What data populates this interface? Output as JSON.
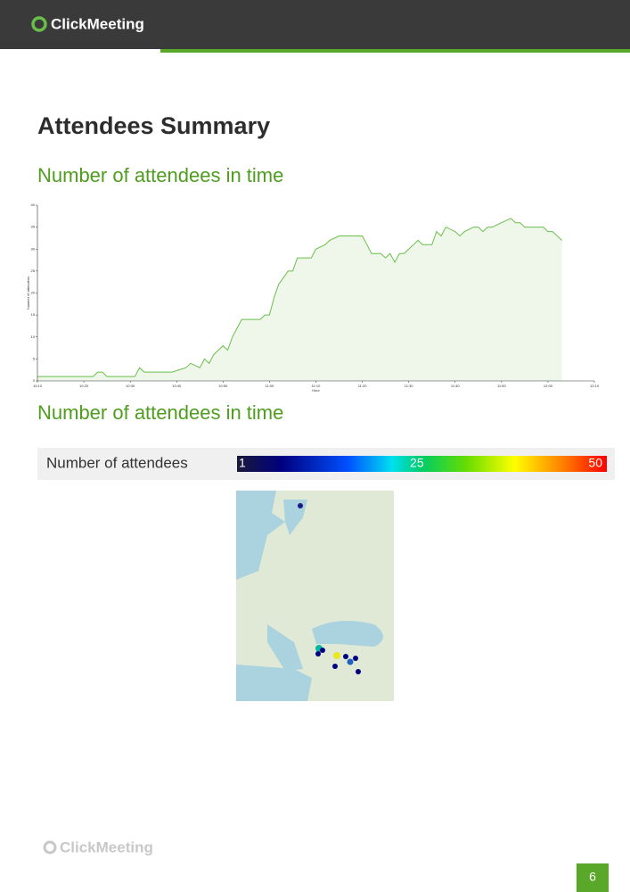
{
  "header": {
    "logo": "ClickMeeting"
  },
  "title": "Attendees Summary",
  "sections": [
    {
      "heading": "Number of attendees in time"
    },
    {
      "heading": "Number of attendees in time"
    }
  ],
  "chart_data": {
    "type": "area",
    "xlabel": "Hour",
    "ylabel": "Number of attendees",
    "x": [
      "10:10",
      "10:22",
      "10:23",
      "10:24",
      "10:25",
      "10:31",
      "10:32",
      "10:33",
      "10:39",
      "10:42",
      "10:43",
      "10:45",
      "10:46",
      "10:47",
      "10:48",
      "10:49",
      "10:50",
      "10:51",
      "10:52",
      "10:54",
      "10:58",
      "10:59",
      "11:00",
      "11:01",
      "11:02",
      "11:04",
      "11:05",
      "11:06",
      "11:09",
      "11:10",
      "11:12",
      "11:13",
      "11:15",
      "11:20",
      "11:21",
      "11:22",
      "11:24",
      "11:25",
      "11:26",
      "11:27",
      "11:28",
      "11:29",
      "11:30",
      "11:31",
      "11:32",
      "11:33",
      "11:35",
      "11:36",
      "11:37",
      "11:38",
      "11:40",
      "11:41",
      "11:42",
      "11:44",
      "11:45",
      "11:46",
      "11:47",
      "11:48",
      "11:50",
      "11:52",
      "11:53",
      "11:54",
      "11:55",
      "11:59",
      "12:00",
      "12:01",
      "12:02",
      "12:03"
    ],
    "values": [
      1,
      1,
      2,
      2,
      1,
      1,
      3,
      2,
      2,
      3,
      4,
      3,
      5,
      4,
      6,
      7,
      8,
      7,
      10,
      14,
      14,
      15,
      15,
      19,
      22,
      25,
      25,
      28,
      28,
      30,
      31,
      32,
      33,
      33,
      31,
      29,
      29,
      28,
      29,
      27,
      29,
      29,
      30,
      31,
      32,
      31,
      31,
      34,
      33,
      35,
      34,
      33,
      34,
      35,
      35,
      34,
      35,
      35,
      36,
      37,
      36,
      36,
      35,
      35,
      34,
      34,
      33,
      32
    ],
    "color": "#6abf4b",
    "fill": "#eef7e9",
    "xlim": [
      "10:10",
      "12:10"
    ],
    "xticks": [
      "10:10",
      "10:20",
      "10:30",
      "10:40",
      "10:50",
      "11:00",
      "11:10",
      "11:20",
      "11:30",
      "11:40",
      "11:50",
      "12:00",
      "12:10"
    ],
    "ylim": [
      0,
      40
    ],
    "yticks": [
      0,
      5,
      10,
      15,
      20,
      25,
      30,
      35,
      40
    ]
  },
  "colorbar": {
    "label": "Number of attendees",
    "ticks": [
      1,
      25,
      50
    ]
  },
  "footer": {
    "logo": "ClickMeeting",
    "page_number": 6
  }
}
